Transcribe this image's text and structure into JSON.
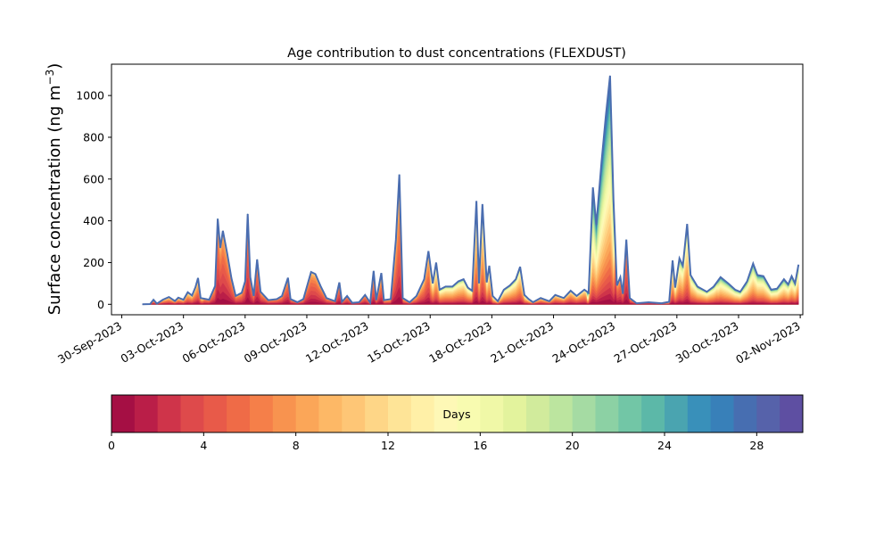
{
  "chart_data": {
    "type": "area",
    "title": "Age contribution to dust concentrations (FLEXDUST)",
    "ylabel_main": "Surface concentration (ng m",
    "ylabel_sup": "−3",
    "ylabel_close": ")",
    "xlabel": "",
    "x_start": "2023-10-01",
    "xlim_dates": [
      "2023-09-29T12:00",
      "2023-11-02T03:00"
    ],
    "ylim": [
      -50,
      1150
    ],
    "yticks": [
      0,
      200,
      400,
      600,
      800,
      1000
    ],
    "xticks": [
      {
        "date": "2023-09-30",
        "label": "30-Sep-2023"
      },
      {
        "date": "2023-10-03",
        "label": "03-Oct-2023"
      },
      {
        "date": "2023-10-06",
        "label": "06-Oct-2023"
      },
      {
        "date": "2023-10-09",
        "label": "09-Oct-2023"
      },
      {
        "date": "2023-10-12",
        "label": "12-Oct-2023"
      },
      {
        "date": "2023-10-15",
        "label": "15-Oct-2023"
      },
      {
        "date": "2023-10-18",
        "label": "18-Oct-2023"
      },
      {
        "date": "2023-10-21",
        "label": "21-Oct-2023"
      },
      {
        "date": "2023-10-24",
        "label": "24-Oct-2023"
      },
      {
        "date": "2023-10-27",
        "label": "27-Oct-2023"
      },
      {
        "date": "2023-10-30",
        "label": "30-Oct-2023"
      },
      {
        "date": "2023-11-02",
        "label": "02-Nov-2023"
      }
    ],
    "total_series": [
      [
        "2023-10-01T00:00",
        0
      ],
      [
        "2023-10-01T09:00",
        1
      ],
      [
        "2023-10-01T13:00",
        22
      ],
      [
        "2023-10-01T17:00",
        3
      ],
      [
        "2023-10-02T00:00",
        22
      ],
      [
        "2023-10-02T07:00",
        35
      ],
      [
        "2023-10-02T14:00",
        16
      ],
      [
        "2023-10-02T18:00",
        32
      ],
      [
        "2023-10-03T00:00",
        22
      ],
      [
        "2023-10-03T05:00",
        58
      ],
      [
        "2023-10-03T10:00",
        42
      ],
      [
        "2023-10-03T14:00",
        82
      ],
      [
        "2023-10-03T17:00",
        126
      ],
      [
        "2023-10-03T20:00",
        30
      ],
      [
        "2023-10-04T06:00",
        22
      ],
      [
        "2023-10-04T13:00",
        88
      ],
      [
        "2023-10-04T16:00",
        410
      ],
      [
        "2023-10-04T19:00",
        270
      ],
      [
        "2023-10-04T22:00",
        352
      ],
      [
        "2023-10-05T03:00",
        245
      ],
      [
        "2023-10-05T08:00",
        125
      ],
      [
        "2023-10-05T13:00",
        40
      ],
      [
        "2023-10-05T20:00",
        55
      ],
      [
        "2023-10-06T00:00",
        110
      ],
      [
        "2023-10-06T03:00",
        433
      ],
      [
        "2023-10-06T06:00",
        130
      ],
      [
        "2023-10-06T10:00",
        40
      ],
      [
        "2023-10-06T14:00",
        215
      ],
      [
        "2023-10-06T18:00",
        60
      ],
      [
        "2023-10-07T03:00",
        20
      ],
      [
        "2023-10-07T13:00",
        25
      ],
      [
        "2023-10-07T19:00",
        40
      ],
      [
        "2023-10-08T02:00",
        127
      ],
      [
        "2023-10-08T05:00",
        25
      ],
      [
        "2023-10-08T13:00",
        10
      ],
      [
        "2023-10-08T20:00",
        25
      ],
      [
        "2023-10-09T05:00",
        155
      ],
      [
        "2023-10-09T10:00",
        145
      ],
      [
        "2023-10-09T16:00",
        88
      ],
      [
        "2023-10-09T23:00",
        30
      ],
      [
        "2023-10-10T09:00",
        15
      ],
      [
        "2023-10-10T14:00",
        105
      ],
      [
        "2023-10-10T17:00",
        12
      ],
      [
        "2023-10-10T23:00",
        40
      ],
      [
        "2023-10-11T05:00",
        7
      ],
      [
        "2023-10-11T13:00",
        10
      ],
      [
        "2023-10-11T20:00",
        45
      ],
      [
        "2023-10-12T02:00",
        8
      ],
      [
        "2023-10-12T06:00",
        160
      ],
      [
        "2023-10-12T09:00",
        20
      ],
      [
        "2023-10-12T15:00",
        150
      ],
      [
        "2023-10-12T18:00",
        20
      ],
      [
        "2023-10-13T02:00",
        25
      ],
      [
        "2023-10-13T08:00",
        310
      ],
      [
        "2023-10-13T12:00",
        622
      ],
      [
        "2023-10-13T16:00",
        30
      ],
      [
        "2023-10-14T00:00",
        10
      ],
      [
        "2023-10-14T08:00",
        40
      ],
      [
        "2023-10-14T17:00",
        120
      ],
      [
        "2023-10-14T22:00",
        255
      ],
      [
        "2023-10-15T03:00",
        100
      ],
      [
        "2023-10-15T07:00",
        200
      ],
      [
        "2023-10-15T11:00",
        70
      ],
      [
        "2023-10-15T18:00",
        85
      ],
      [
        "2023-10-16T02:00",
        85
      ],
      [
        "2023-10-16T09:00",
        110
      ],
      [
        "2023-10-16T15:00",
        120
      ],
      [
        "2023-10-16T20:00",
        80
      ],
      [
        "2023-10-17T01:00",
        65
      ],
      [
        "2023-10-17T06:00",
        495
      ],
      [
        "2023-10-17T09:00",
        100
      ],
      [
        "2023-10-17T13:00",
        480
      ],
      [
        "2023-10-17T18:00",
        105
      ],
      [
        "2023-10-17T21:00",
        185
      ],
      [
        "2023-10-18T01:00",
        40
      ],
      [
        "2023-10-18T07:00",
        15
      ],
      [
        "2023-10-18T14:00",
        70
      ],
      [
        "2023-10-18T21:00",
        90
      ],
      [
        "2023-10-19T04:00",
        120
      ],
      [
        "2023-10-19T09:00",
        180
      ],
      [
        "2023-10-19T14:00",
        45
      ],
      [
        "2023-10-19T19:00",
        25
      ],
      [
        "2023-10-20T00:00",
        10
      ],
      [
        "2023-10-20T09:00",
        30
      ],
      [
        "2023-10-20T19:00",
        15
      ],
      [
        "2023-10-21T02:00",
        45
      ],
      [
        "2023-10-21T12:00",
        30
      ],
      [
        "2023-10-21T20:00",
        65
      ],
      [
        "2023-10-22T03:00",
        40
      ],
      [
        "2023-10-22T12:00",
        70
      ],
      [
        "2023-10-22T17:00",
        55
      ],
      [
        "2023-10-22T22:00",
        560
      ],
      [
        "2023-10-23T02:00",
        380
      ],
      [
        "2023-10-23T08:00",
        680
      ],
      [
        "2023-10-23T13:00",
        900
      ],
      [
        "2023-10-23T18:00",
        1095
      ],
      [
        "2023-10-23T22:00",
        500
      ],
      [
        "2023-10-24T02:00",
        90
      ],
      [
        "2023-10-24T06:00",
        130
      ],
      [
        "2023-10-24T09:00",
        50
      ],
      [
        "2023-10-24T13:00",
        310
      ],
      [
        "2023-10-24T17:00",
        30
      ],
      [
        "2023-10-25T01:00",
        5
      ],
      [
        "2023-10-25T15:00",
        10
      ],
      [
        "2023-10-26T06:00",
        5
      ],
      [
        "2023-10-26T15:00",
        12
      ],
      [
        "2023-10-26T19:00",
        210
      ],
      [
        "2023-10-26T22:00",
        80
      ],
      [
        "2023-10-27T03:00",
        220
      ],
      [
        "2023-10-27T07:00",
        185
      ],
      [
        "2023-10-27T12:00",
        385
      ],
      [
        "2023-10-27T16:00",
        140
      ],
      [
        "2023-10-28T00:00",
        85
      ],
      [
        "2023-10-28T11:00",
        60
      ],
      [
        "2023-10-28T19:00",
        85
      ],
      [
        "2023-10-29T03:00",
        130
      ],
      [
        "2023-10-29T12:00",
        100
      ],
      [
        "2023-10-29T20:00",
        70
      ],
      [
        "2023-10-30T02:00",
        60
      ],
      [
        "2023-10-30T10:00",
        110
      ],
      [
        "2023-10-30T17:00",
        195
      ],
      [
        "2023-10-30T22:00",
        140
      ],
      [
        "2023-10-31T05:00",
        135
      ],
      [
        "2023-10-31T14:00",
        70
      ],
      [
        "2023-10-31T21:00",
        75
      ],
      [
        "2023-11-01T05:00",
        120
      ],
      [
        "2023-11-01T10:00",
        95
      ],
      [
        "2023-11-01T14:00",
        135
      ],
      [
        "2023-11-01T18:00",
        100
      ],
      [
        "2023-11-01T22:00",
        190
      ]
    ],
    "colorbar": {
      "label": "Days",
      "range": [
        0,
        30
      ],
      "ticks": [
        0,
        4,
        8,
        12,
        16,
        20,
        24,
        28
      ],
      "colors": [
        "#a50f44",
        "#ba1e48",
        "#cf344a",
        "#de4a4b",
        "#e85a49",
        "#ef6b47",
        "#f57f49",
        "#f8934f",
        "#fba658",
        "#fdb866",
        "#fec676",
        "#fed687",
        "#fee497",
        "#fff0a7",
        "#fef8b6",
        "#f8fbb0",
        "#f0f8a7",
        "#e3f39d",
        "#d1eb9c",
        "#bce59f",
        "#a5dba3",
        "#8cd1a4",
        "#72c6a6",
        "#5cb8a8",
        "#4aa4b0",
        "#3990ba",
        "#3880b9",
        "#476eb1",
        "#5662aa",
        "#5e4fa2"
      ]
    }
  }
}
